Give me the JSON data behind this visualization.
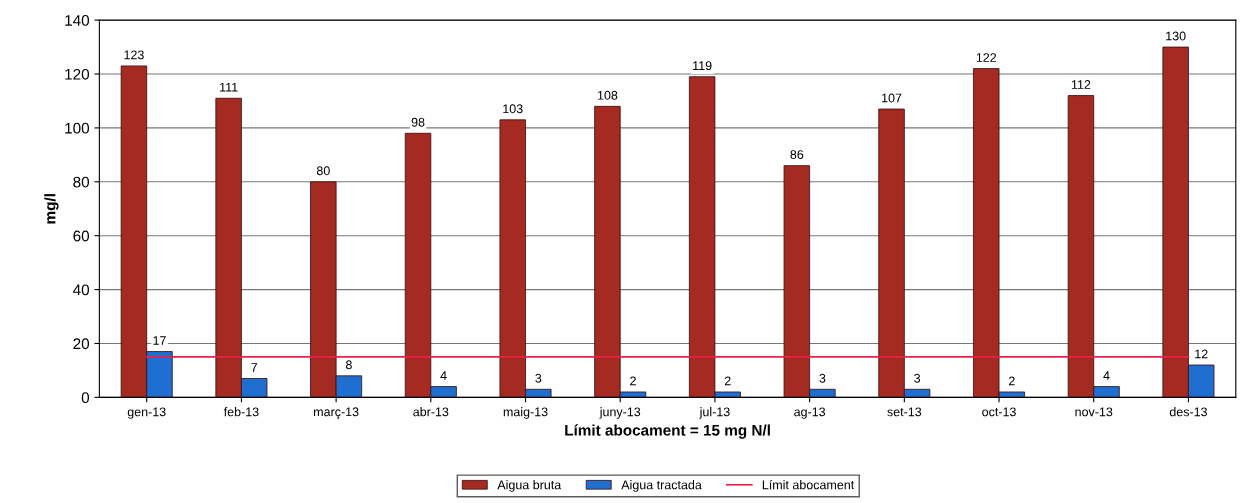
{
  "chart_data": {
    "type": "bar",
    "categories": [
      "gen-13",
      "feb-13",
      "març-13",
      "abr-13",
      "maig-13",
      "juny-13",
      "jul-13",
      "ag-13",
      "set-13",
      "oct-13",
      "nov-13",
      "des-13"
    ],
    "series": [
      {
        "name": "Aigua bruta",
        "color": "#a52a22",
        "values": [
          123,
          111,
          80,
          98,
          103,
          108,
          119,
          86,
          107,
          122,
          112,
          130
        ],
        "value_labels": [
          "123",
          "111",
          "80",
          "98",
          "103",
          "108",
          "119",
          "86",
          "107",
          "122",
          "112",
          "130"
        ]
      },
      {
        "name": "Aigua tractada",
        "color": "#1f6fd0",
        "values": [
          17,
          7,
          8,
          4,
          3,
          2,
          2,
          3,
          3,
          2,
          4,
          12
        ],
        "value_labels": [
          "17",
          "7",
          "8",
          "4",
          "3",
          "2",
          "2",
          "3",
          "3",
          "2",
          "4",
          "12"
        ]
      },
      {
        "name": "Límit abocament",
        "type": "line",
        "color": "#e8204a",
        "values": [
          15,
          15,
          15,
          15,
          15,
          15,
          15,
          15,
          15,
          15,
          15,
          15
        ]
      }
    ],
    "xlabel": "Límit abocament = 15 mg N/l",
    "ylabel": "mg/l",
    "ylim": [
      0,
      140
    ],
    "yticks": [
      0,
      20,
      40,
      60,
      80,
      100,
      120,
      140
    ],
    "grid": "y",
    "legend": "bottom"
  }
}
